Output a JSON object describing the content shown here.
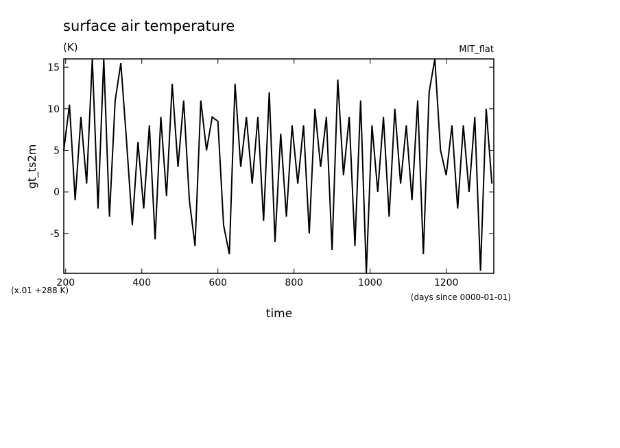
{
  "chart_data": {
    "type": "line",
    "title": "surface air temperature",
    "subtitle": "(K)",
    "annotation_right": "MIT_flat",
    "ylabel": "gt_ts2m",
    "xlabel": "time",
    "y_units_note": "(x.01 +288 K)",
    "x_units_note": "(days since 0000-01-01)",
    "xlim": [
      195,
      1325
    ],
    "ylim": [
      -9.8,
      16
    ],
    "xticks": [
      200,
      400,
      600,
      800,
      1000,
      1200
    ],
    "yticks": [
      -5,
      0,
      5,
      10,
      15
    ],
    "x": [
      195,
      210,
      225,
      240,
      255,
      270,
      285,
      300,
      315,
      330,
      345,
      360,
      375,
      390,
      405,
      420,
      435,
      450,
      465,
      480,
      495,
      510,
      525,
      540,
      555,
      570,
      585,
      600,
      615,
      630,
      645,
      660,
      675,
      690,
      705,
      720,
      735,
      750,
      765,
      780,
      795,
      810,
      825,
      840,
      855,
      870,
      885,
      900,
      915,
      930,
      945,
      960,
      975,
      990,
      1005,
      1020,
      1035,
      1050,
      1065,
      1080,
      1095,
      1110,
      1125,
      1140,
      1155,
      1170,
      1185,
      1200,
      1215,
      1230,
      1245,
      1260,
      1275,
      1290,
      1305,
      1320
    ],
    "series": [
      {
        "color": "#000000",
        "values": [
          5,
          10.5,
          -1,
          9,
          1,
          16,
          -2,
          16,
          -3,
          11,
          15.5,
          6,
          -4,
          6,
          -2,
          8,
          -5.7,
          9,
          -0.5,
          13,
          3,
          11,
          -1,
          -6.5,
          11,
          5,
          9,
          8.5,
          -4,
          -7.5,
          13,
          3,
          9,
          1,
          9,
          -3.5,
          12,
          -6,
          7,
          -3,
          8,
          1,
          8,
          -5,
          10,
          3,
          9,
          -7,
          13.5,
          2,
          9,
          -6.5,
          11,
          -9.8,
          8,
          0,
          9,
          -3,
          10,
          1,
          8,
          -1,
          11,
          -7.5,
          12,
          16,
          5,
          2,
          8,
          -2,
          8,
          0,
          9,
          -9.5,
          10,
          1
        ]
      }
    ]
  }
}
